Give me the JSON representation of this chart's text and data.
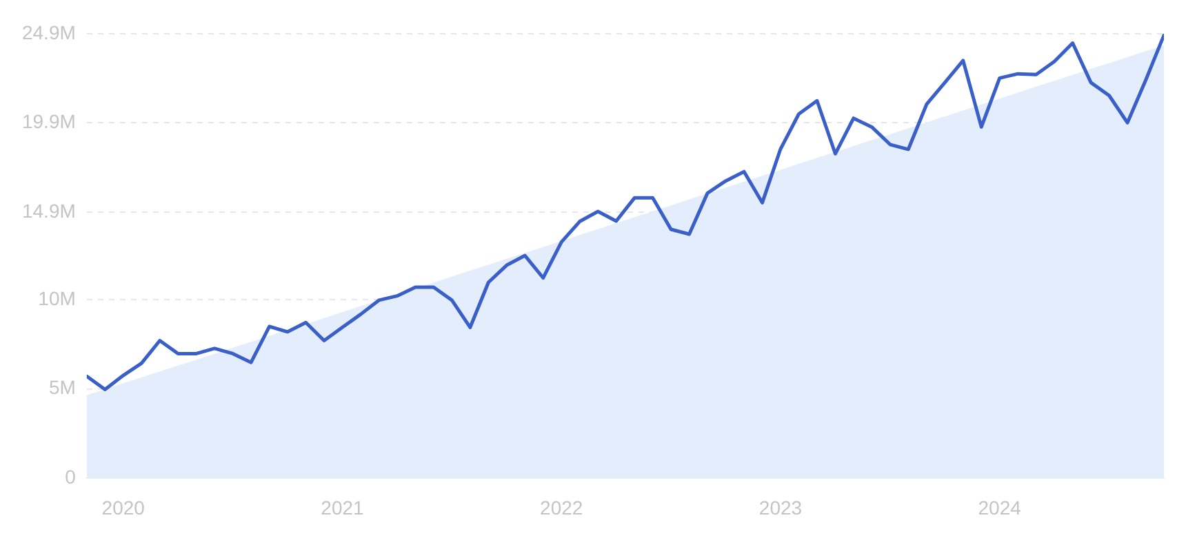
{
  "chart_data": {
    "type": "line",
    "x": [
      "2019-11",
      "2019-12",
      "2020-01",
      "2020-02",
      "2020-03",
      "2020-04",
      "2020-05",
      "2020-06",
      "2020-07",
      "2020-08",
      "2020-09",
      "2020-10",
      "2020-11",
      "2020-12",
      "2021-01",
      "2021-02",
      "2021-03",
      "2021-04",
      "2021-05",
      "2021-06",
      "2021-07",
      "2021-08",
      "2021-09",
      "2021-10",
      "2021-11",
      "2021-12",
      "2022-01",
      "2022-02",
      "2022-03",
      "2022-04",
      "2022-05",
      "2022-06",
      "2022-07",
      "2022-08",
      "2022-09",
      "2022-10",
      "2022-11",
      "2022-12",
      "2023-01",
      "2023-02",
      "2023-03",
      "2023-04",
      "2023-05",
      "2023-06",
      "2023-07",
      "2023-08",
      "2023-09",
      "2023-10",
      "2023-11",
      "2023-12",
      "2024-01",
      "2024-02",
      "2024-03",
      "2024-04",
      "2024-05",
      "2024-06",
      "2024-07",
      "2024-08",
      "2024-09",
      "2024-10"
    ],
    "series": [
      {
        "type": "area",
        "color": "#e3edfb",
        "x": [
          "2019-11",
          "2024-10"
        ],
        "values": [
          4.65,
          24.25
        ]
      },
      {
        "type": "line",
        "color": "#3a5fc8",
        "values": [
          5.71,
          4.97,
          5.76,
          6.44,
          7.71,
          6.98,
          6.98,
          7.27,
          6.98,
          6.49,
          8.5,
          8.2,
          8.72,
          7.71,
          8.45,
          9.18,
          9.97,
          10.21,
          10.7,
          10.7,
          9.97,
          8.45,
          10.97,
          11.93,
          12.47,
          11.22,
          13.23,
          14.38,
          14.94,
          14.4,
          15.7,
          15.7,
          13.94,
          13.67,
          15.97,
          16.65,
          17.17,
          15.43,
          18.44,
          20.4,
          21.14,
          18.17,
          20.16,
          19.67,
          18.69,
          18.42,
          20.94,
          22.16,
          23.39,
          19.67,
          22.41,
          22.65,
          22.61,
          23.34,
          24.37,
          22.16,
          21.43,
          19.91,
          22.29,
          24.81
        ]
      }
    ],
    "xlim": [
      "2019-11",
      "2024-10"
    ],
    "xticks": [
      "2020",
      "2021",
      "2022",
      "2023",
      "2024"
    ],
    "ylim": [
      0,
      24.9
    ],
    "yticks": [
      0,
      {
        "value": 5,
        "label": "5M"
      },
      {
        "value": 10,
        "label": "10M"
      },
      {
        "value": 14.9,
        "label": "14.9M"
      },
      {
        "value": 19.9,
        "label": "19.9M"
      },
      {
        "value": 24.9,
        "label": "24.9M"
      }
    ],
    "grid": "y",
    "legend": false,
    "marker": "none",
    "line_style": "solid"
  }
}
